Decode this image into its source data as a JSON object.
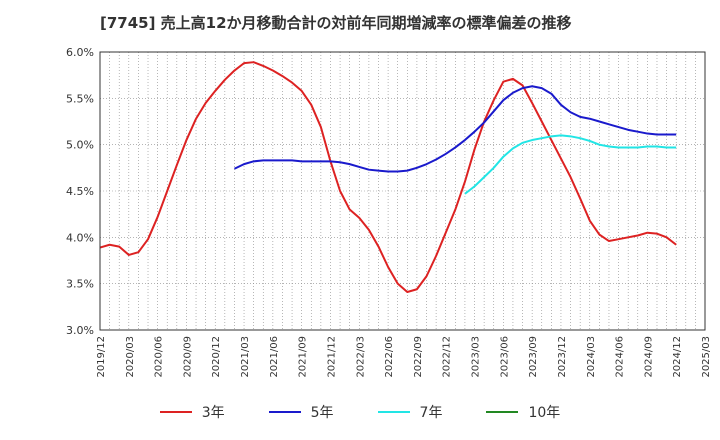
{
  "title": "[7745]  売上高12か月移動合計の対前年同期増減率の標準偏差の推移",
  "chart_data": {
    "type": "line",
    "ylim": [
      3.0,
      6.0
    ],
    "yticks": [
      "3.0%",
      "3.5%",
      "4.0%",
      "4.5%",
      "5.0%",
      "5.5%",
      "6.0%"
    ],
    "ytick_values": [
      3.0,
      3.5,
      4.0,
      4.5,
      5.0,
      5.5,
      6.0
    ],
    "xticks": [
      "2019/12",
      "2020/03",
      "2020/06",
      "2020/09",
      "2020/12",
      "2021/03",
      "2021/06",
      "2021/09",
      "2021/12",
      "2022/03",
      "2022/06",
      "2022/09",
      "2022/12",
      "2023/03",
      "2023/06",
      "2023/09",
      "2023/12",
      "2024/03",
      "2024/06",
      "2024/09",
      "2024/12",
      "2025/03"
    ],
    "grid": true,
    "legend_position": "bottom",
    "series": [
      {
        "name": "3年",
        "color": "#dd2222",
        "start": "2019/12",
        "values": [
          3.89,
          3.92,
          3.9,
          3.81,
          3.84,
          3.98,
          4.22,
          4.5,
          4.78,
          5.05,
          5.28,
          5.45,
          5.58,
          5.7,
          5.8,
          5.88,
          5.89,
          5.85,
          5.8,
          5.74,
          5.67,
          5.58,
          5.43,
          5.19,
          4.82,
          4.5,
          4.3,
          4.21,
          4.08,
          3.9,
          3.68,
          3.5,
          3.41,
          3.44,
          3.58,
          3.8,
          4.05,
          4.3,
          4.6,
          4.95,
          5.25,
          5.48,
          5.68,
          5.71,
          5.64,
          5.45,
          5.25,
          5.05,
          4.85,
          4.65,
          4.42,
          4.18,
          4.03,
          3.96,
          3.98,
          4.0,
          4.02,
          4.05,
          4.04,
          4.0,
          3.92
        ]
      },
      {
        "name": "5年",
        "color": "#1a1acc",
        "start": "2021/02",
        "values": [
          4.74,
          4.79,
          4.82,
          4.83,
          4.83,
          4.83,
          4.83,
          4.82,
          4.82,
          4.82,
          4.82,
          4.81,
          4.79,
          4.76,
          4.73,
          4.72,
          4.71,
          4.71,
          4.72,
          4.75,
          4.79,
          4.84,
          4.9,
          4.97,
          5.05,
          5.14,
          5.24,
          5.36,
          5.48,
          5.56,
          5.61,
          5.63,
          5.61,
          5.55,
          5.43,
          5.35,
          5.3,
          5.28,
          5.25,
          5.22,
          5.19,
          5.16,
          5.14,
          5.12,
          5.11,
          5.11,
          5.11
        ]
      },
      {
        "name": "7年",
        "color": "#22e5e5",
        "start": "2023/02",
        "values": [
          4.47,
          4.55,
          4.65,
          4.75,
          4.87,
          4.96,
          5.02,
          5.05,
          5.07,
          5.09,
          5.1,
          5.09,
          5.07,
          5.04,
          5.0,
          4.98,
          4.97,
          4.97,
          4.97,
          4.98,
          4.98,
          4.97,
          4.97
        ]
      },
      {
        "name": "10年",
        "color": "#228822",
        "start": "2023/02",
        "values": []
      }
    ]
  },
  "legend": {
    "items": [
      {
        "label": "3年",
        "color": "#dd2222"
      },
      {
        "label": "5年",
        "color": "#1a1acc"
      },
      {
        "label": "7年",
        "color": "#22e5e5"
      },
      {
        "label": "10年",
        "color": "#228822"
      }
    ]
  }
}
